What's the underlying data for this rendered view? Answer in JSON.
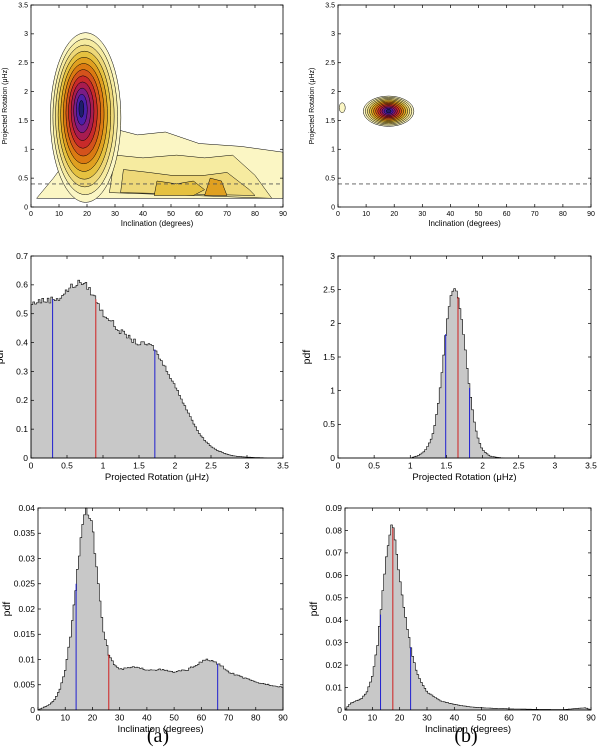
{
  "figure": {
    "captions": [
      "(a)",
      "(b)"
    ],
    "colors": {
      "fill": "#c8c8c8",
      "outline": "#000000",
      "median": "#d02020",
      "interval": "#2020d0",
      "contour_levels": [
        "#fbf6c4",
        "#f6eba0",
        "#eed878",
        "#e5c140",
        "#e0a020",
        "#db7a12",
        "#d4521c",
        "#c82a2a",
        "#a81c50",
        "#7a1c86",
        "#4a1fa8",
        "#1e1e6a",
        "#000000"
      ]
    }
  },
  "chart_data": [
    {
      "type": "heatmap",
      "panel": "a-top",
      "xlabel": "Inclination (degrees)",
      "ylabel": "Projected Rotation (μHz)",
      "xlim": [
        0,
        90
      ],
      "ylim": [
        0,
        3.5
      ],
      "xticks": [
        "0",
        "10",
        "20",
        "30",
        "40",
        "50",
        "60",
        "70",
        "80",
        "90"
      ],
      "yticks": [
        "0",
        "0.5",
        "1",
        "1.5",
        "2",
        "2.5",
        "3",
        "3.5"
      ],
      "reference_line": 0.4,
      "peak": {
        "x": 18,
        "y": 1.7
      },
      "note": "broad contours: main peak near 18°, 1.7 μHz plus a low plateau 30–90° below ~1.1 μHz"
    },
    {
      "type": "heatmap",
      "panel": "b-top",
      "xlabel": "Inclination (degrees)",
      "ylabel": "Projected Rotation (μHz)",
      "xlim": [
        0,
        90
      ],
      "ylim": [
        0,
        3.5
      ],
      "xticks": [
        "0",
        "10",
        "20",
        "30",
        "40",
        "50",
        "60",
        "70",
        "80",
        "90"
      ],
      "yticks": [
        "0",
        "0.5",
        "1",
        "1.5",
        "2",
        "2.5",
        "3",
        "3.5"
      ],
      "reference_line": 0.4,
      "peak": {
        "x": 18,
        "y": 1.66
      }
    },
    {
      "type": "area",
      "panel": "a-middle",
      "xlabel": "Projected Rotation (μHz)",
      "ylabel": "pdf",
      "xlim": [
        0,
        3.5
      ],
      "ylim": [
        0,
        0.7
      ],
      "xticks": [
        "0",
        "0.5",
        "1",
        "1.5",
        "2",
        "2.5",
        "3",
        "3.5"
      ],
      "yticks": [
        "0",
        "0.1",
        "0.2",
        "0.3",
        "0.4",
        "0.5",
        "0.6",
        "0.7"
      ],
      "x": [
        0,
        0.1,
        0.2,
        0.3,
        0.4,
        0.5,
        0.6,
        0.7,
        0.8,
        0.9,
        1.0,
        1.1,
        1.2,
        1.3,
        1.4,
        1.5,
        1.6,
        1.7,
        1.8,
        1.9,
        2.0,
        2.1,
        2.2,
        2.3,
        2.4,
        2.5,
        2.6,
        2.7,
        2.8,
        2.9,
        3.0,
        3.1,
        3.2,
        3.3,
        3.5
      ],
      "y": [
        0.53,
        0.545,
        0.545,
        0.55,
        0.555,
        0.58,
        0.6,
        0.61,
        0.59,
        0.55,
        0.5,
        0.48,
        0.445,
        0.43,
        0.41,
        0.395,
        0.395,
        0.385,
        0.34,
        0.3,
        0.25,
        0.2,
        0.15,
        0.1,
        0.065,
        0.04,
        0.025,
        0.015,
        0.008,
        0.005,
        0.003,
        0.002,
        0.001,
        0.0,
        0.0
      ],
      "markers": {
        "lower": 0.3,
        "median": 0.9,
        "upper": 1.72
      }
    },
    {
      "type": "area",
      "panel": "b-middle",
      "xlabel": "Projected Rotation (μHz)",
      "ylabel": "pdf",
      "xlim": [
        0,
        3.5
      ],
      "ylim": [
        0,
        3
      ],
      "xticks": [
        "0",
        "0.5",
        "1",
        "1.5",
        "2",
        "2.5",
        "3",
        "3.5"
      ],
      "yticks": [
        "0",
        "0.5",
        "1",
        "1.5",
        "2",
        "2.5",
        "3"
      ],
      "x": [
        1.0,
        1.1,
        1.2,
        1.3,
        1.35,
        1.4,
        1.45,
        1.5,
        1.55,
        1.6,
        1.65,
        1.7,
        1.75,
        1.8,
        1.85,
        1.9,
        1.95,
        2.0,
        2.1,
        2.2,
        2.3
      ],
      "y": [
        0.0,
        0.03,
        0.1,
        0.3,
        0.55,
        0.9,
        1.4,
        1.95,
        2.35,
        2.55,
        2.45,
        2.15,
        1.7,
        1.2,
        0.8,
        0.45,
        0.25,
        0.12,
        0.03,
        0.01,
        0.0
      ],
      "markers": {
        "lower": 1.49,
        "median": 1.66,
        "upper": 1.82
      }
    },
    {
      "type": "area",
      "panel": "a-bottom",
      "xlabel": "Inclination (degrees)",
      "ylabel": "pdf",
      "xlim": [
        0,
        90
      ],
      "ylim": [
        0,
        0.04
      ],
      "xticks": [
        "0",
        "10",
        "20",
        "30",
        "40",
        "50",
        "60",
        "70",
        "80",
        "90"
      ],
      "yticks": [
        "0",
        "0.005",
        "0.01",
        "0.015",
        "0.02",
        "0.025",
        "0.03",
        "0.035",
        "0.04"
      ],
      "x": [
        0,
        2,
        4,
        6,
        8,
        10,
        12,
        14,
        16,
        18,
        20,
        22,
        24,
        26,
        28,
        30,
        35,
        40,
        45,
        50,
        55,
        60,
        62,
        65,
        68,
        70,
        75,
        80,
        85,
        90
      ],
      "y": [
        0.0,
        0.0005,
        0.001,
        0.002,
        0.004,
        0.008,
        0.015,
        0.025,
        0.036,
        0.04,
        0.036,
        0.026,
        0.016,
        0.011,
        0.009,
        0.008,
        0.0085,
        0.008,
        0.008,
        0.0075,
        0.008,
        0.0095,
        0.01,
        0.0095,
        0.0085,
        0.0075,
        0.0065,
        0.0055,
        0.005,
        0.0045
      ],
      "markers": {
        "lower": 14,
        "median": 26,
        "upper": 66
      }
    },
    {
      "type": "area",
      "panel": "b-bottom",
      "xlabel": "Inclination (degrees)",
      "ylabel": "pdf",
      "xlim": [
        0,
        90
      ],
      "ylim": [
        0,
        0.09
      ],
      "xticks": [
        "0",
        "10",
        "20",
        "30",
        "40",
        "50",
        "60",
        "70",
        "80",
        "90"
      ],
      "yticks": [
        "0",
        "0.01",
        "0.02",
        "0.03",
        "0.04",
        "0.05",
        "0.06",
        "0.07",
        "0.08",
        "0.09"
      ],
      "x": [
        0,
        2,
        4,
        6,
        8,
        10,
        12,
        14,
        16,
        17,
        18,
        20,
        22,
        24,
        26,
        28,
        30,
        35,
        40,
        45,
        50,
        60,
        70,
        80,
        88,
        90
      ],
      "y": [
        0.0,
        0.003,
        0.004,
        0.005,
        0.008,
        0.015,
        0.03,
        0.055,
        0.077,
        0.083,
        0.079,
        0.06,
        0.042,
        0.028,
        0.018,
        0.012,
        0.008,
        0.004,
        0.0025,
        0.0015,
        0.001,
        0.0005,
        0.0003,
        0.0002,
        0.001,
        0.0
      ],
      "markers": {
        "lower": 13,
        "median": 17.5,
        "upper": 24
      }
    }
  ]
}
